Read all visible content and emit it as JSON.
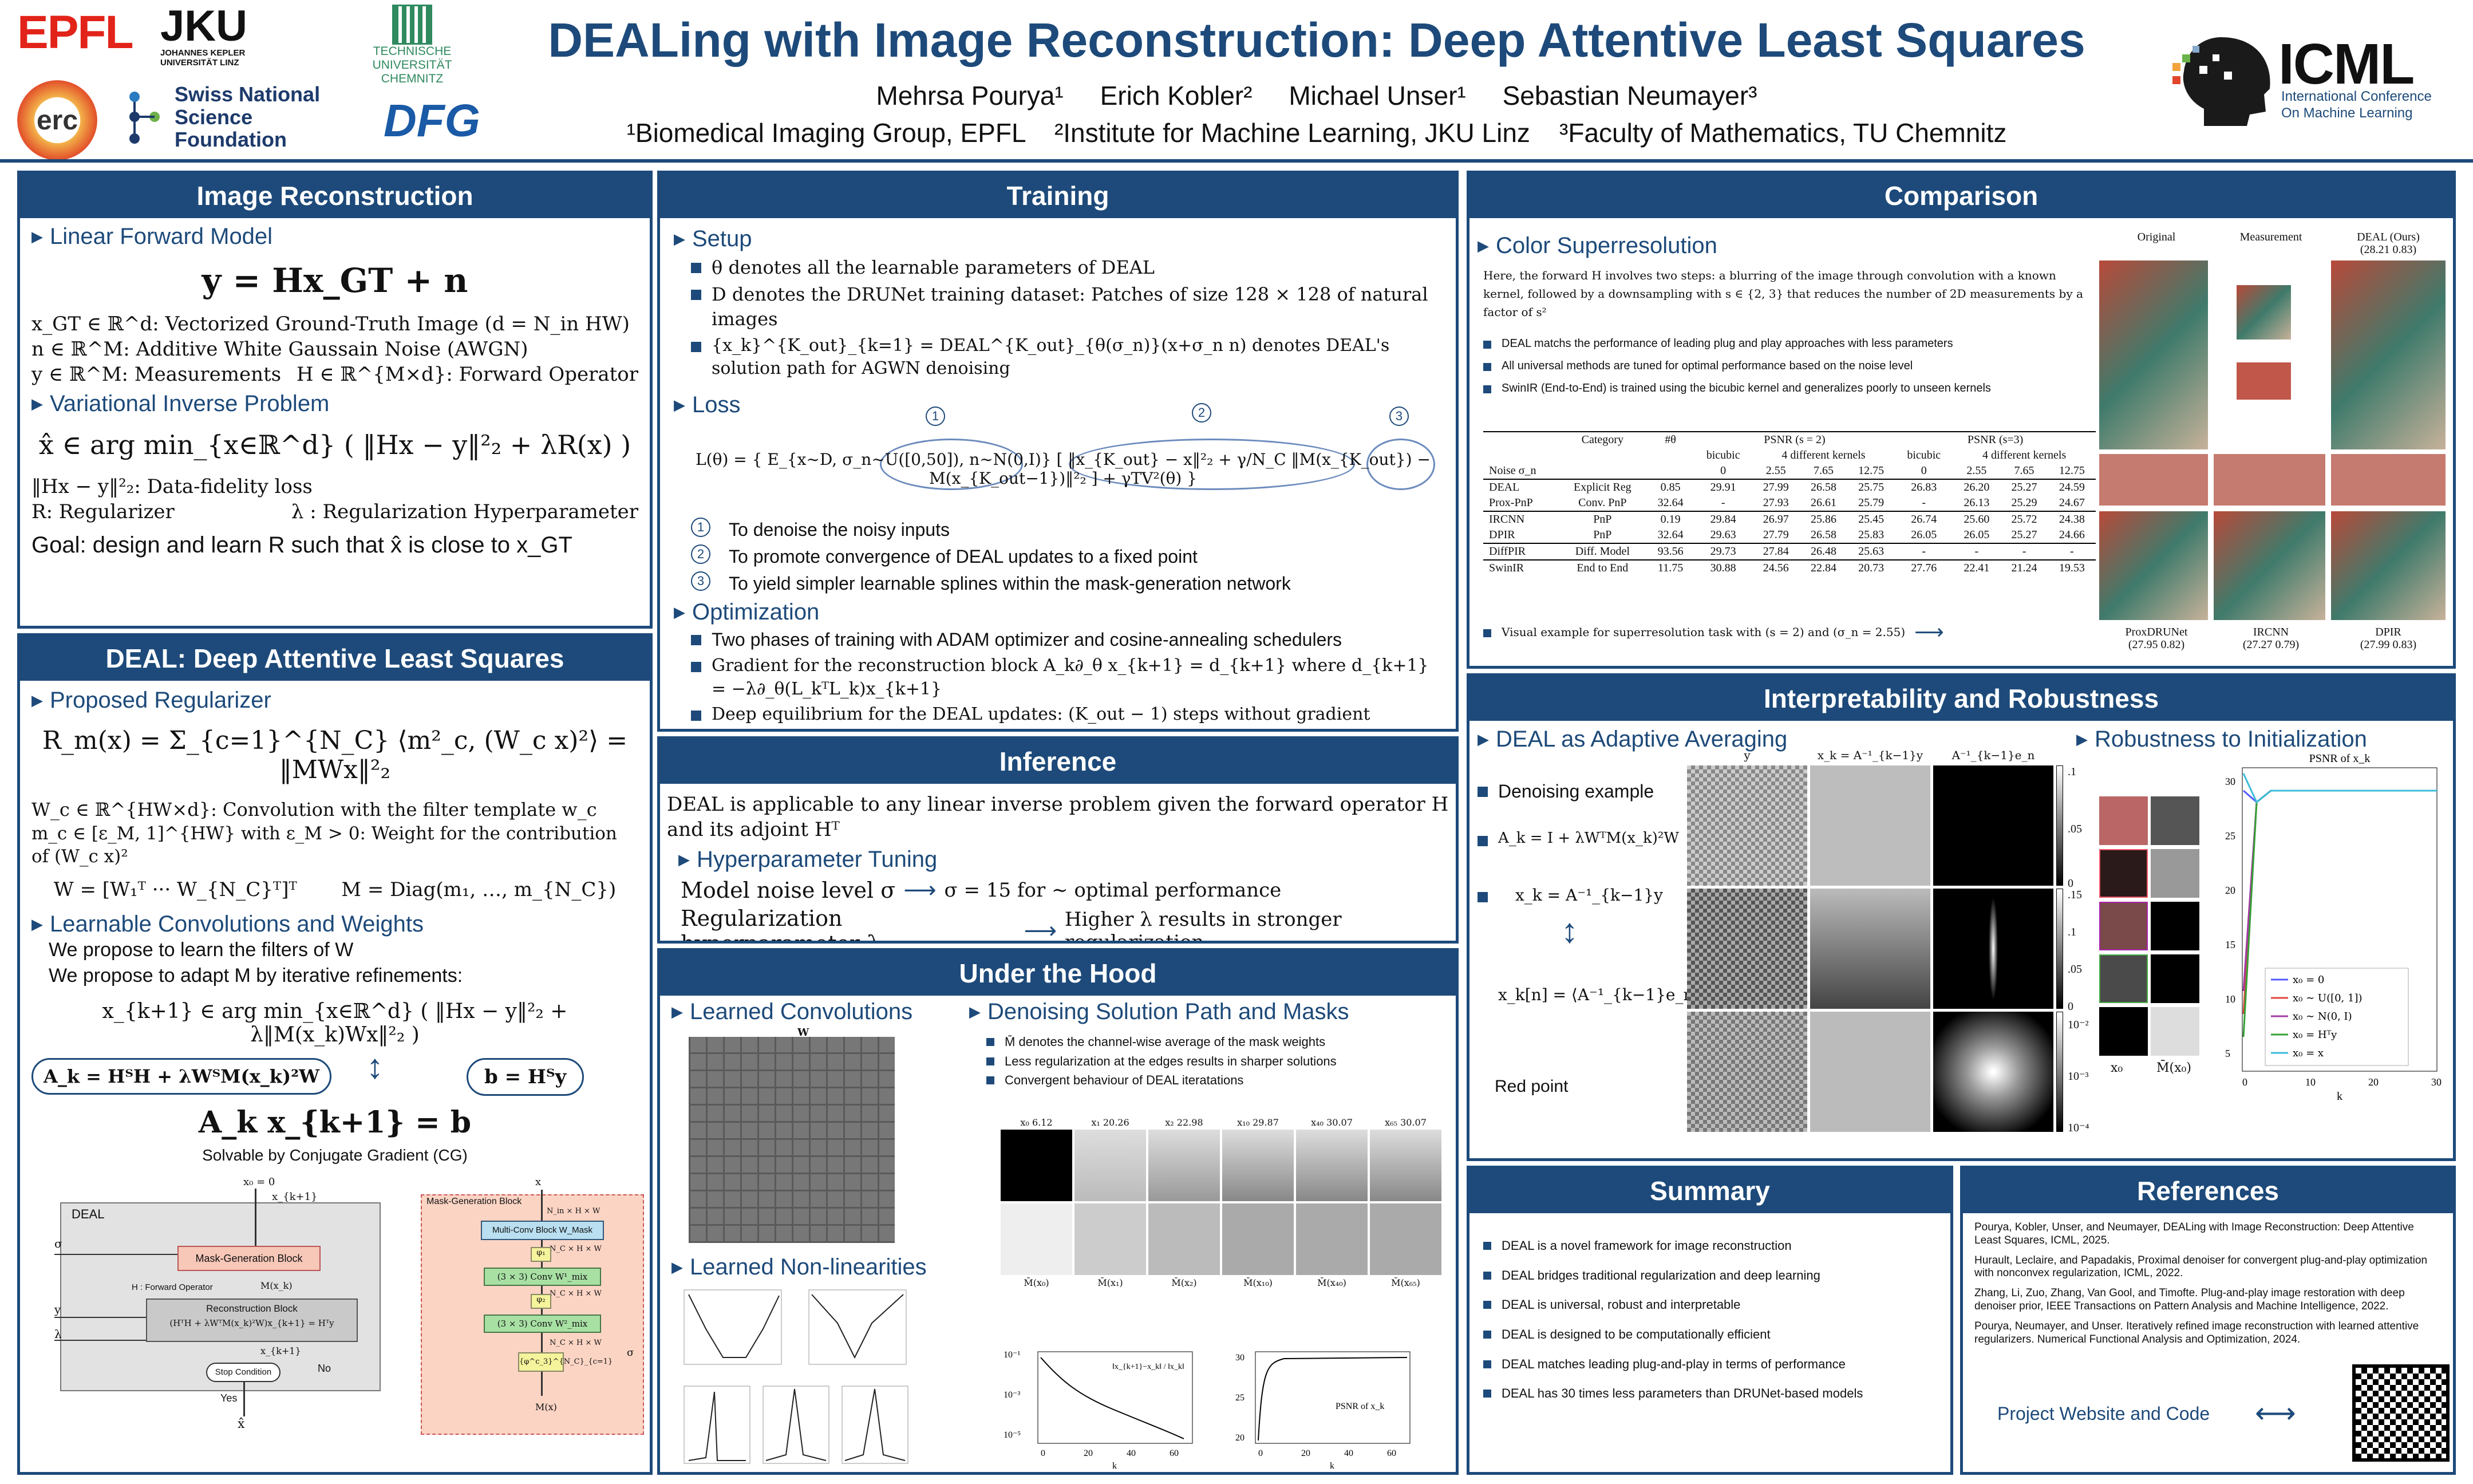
{
  "header": {
    "title": "DEALing with Image Reconstruction: Deep Attentive Least Squares",
    "authors": "Mehrsa Pourya¹     Erich Kobler²     Michael Unser¹     Sebastian Neumayer³",
    "affiliations": "¹Biomedical Imaging Group, EPFL    ²Institute for Machine Learning, JKU Linz    ³Faculty of Mathematics, TU Chemnitz",
    "logos": {
      "epfl": "EPFL",
      "jku": "JKU",
      "jku_sub": "JOHANNES KEPLER UNIVERSITÄT LINZ",
      "tuc": "TECHNISCHE UNIVERSITÄT CHEMNITZ",
      "erc": "erc",
      "snsf": "Swiss National Science Foundation",
      "dfg": "DFG",
      "icml": "ICML",
      "icml_sub": "International Conference On Machine Learning"
    },
    "colors": {
      "brand": "#1d4a7a",
      "epfl": "#e2231a",
      "dfg": "#1a5aa6",
      "tuc": "#2f8a5f",
      "snsf": "#1d3a6b"
    }
  },
  "image_reconstruction": {
    "title": "Image Reconstruction",
    "linear_model_heading": "Linear Forward Model",
    "forward_eq": "y = Hx_GT + n",
    "defs": [
      "x_GT ∈ ℝ^d: Vectorized Ground-Truth Image (d = N_in HW)",
      "n ∈ ℝ^M: Additive White Gaussain Noise (AWGN)",
      "y ∈ ℝ^M: Measurements"
    ],
    "h_def": "H ∈ ℝ^{M×d}: Forward Operator",
    "variational_heading": "Variational Inverse Problem",
    "var_eq": "x̂ ∈ arg min_{x∈ℝ^d} ( ‖Hx − y‖²₂ + λR(x) )",
    "fidelity": "‖Hx − y‖²₂: Data-fidelity loss",
    "regularizer": "R: Regularizer",
    "lambda": "λ : Regularization Hyperparameter",
    "goal": "Goal: design and learn R such that x̂ is close to x_GT"
  },
  "deal": {
    "title": "DEAL: Deep Attentive Least Squares",
    "proposed_heading": "Proposed Regularizer",
    "reg_eq": "R_m(x) = Σ_{c=1}^{N_C} ⟨m²_c, (W_c x)²⟩ = ‖MWx‖²₂",
    "wc_def": "W_c ∈ ℝ^{HW×d}: Convolution with the filter template w_c",
    "mc_def": "m_c ∈ [ε_M, 1]^{HW} with ε_M > 0: Weight for the contribution of (W_c x)²",
    "w_eq": "W = [W₁ᵀ ··· W_{N_C}ᵀ]ᵀ",
    "m_eq": "M = Diag(m₁, …, m_{N_C})",
    "learnable_heading": "Learnable Convolutions and Weights",
    "learn_filters": "We propose to learn the filters of W",
    "adapt_m": "We propose to adapt M by iterative refinements:",
    "iter_eq": "x_{k+1} ∈ arg min_{x∈ℝ^d} ( ‖Hx − y‖²₂ + λ‖M(x_k)Wx‖²₂ )",
    "ak_eq": "A_k = HᵀH + λWᵀM(x_k)²W",
    "b_eq": "b = Hᵀy",
    "axb_eq": "A_k x_{k+1} = b",
    "cg": "Solvable by Conjugate Gradient (CG)",
    "diagram": {
      "deal_label": "DEAL",
      "x0": "x₀ = 0",
      "xk1": "x_{k+1}",
      "sigma": "σ",
      "y": "y",
      "lambda": "λ",
      "mask_block": "Mask-Generation Block",
      "h_op": "H : Forward Operator",
      "mxk": "M(x_k)",
      "recon_block": "Reconstruction Block",
      "recon_eq": "(HᵀH + λWᵀM(x_k)²W)x_{k+1} = Hᵀy",
      "xk1b": "x_{k+1}",
      "stop": "Stop Condition",
      "yes": "Yes",
      "no": "No",
      "xhat": "x̂",
      "mg_title": "Mask-Generation Block",
      "mg_x": "x",
      "mg_dim1": "N_in × H × W",
      "mg_multi": "Multi-Conv Block W_Mask",
      "mg_dim2": "N_C × H × W",
      "mg_phi1": "φ₁",
      "mg_conv1": "(3 × 3) Conv W¹_mix",
      "mg_phi2": "φ₂",
      "mg_conv2": "(3 × 3) Conv W²_mix",
      "mg_phic": "{φ^c_3}^{N_C}_{c=1}",
      "mg_sigma": "σ",
      "mg_mx": "M(x)"
    }
  },
  "training": {
    "title": "Training",
    "setup_heading": "Setup",
    "setup": [
      "θ denotes all the learnable parameters of DEAL",
      "D denotes the DRUNet training dataset: Patches of size 128 × 128 of natural images",
      "{x_k}^{K_out}_{k=1} = DEAL^{K_out}_{θ(σ_n)}(x+σ_n n) denotes DEAL's solution path for AGWN denoising"
    ],
    "loss_heading": "Loss",
    "loss_eq": "L(θ) = { E_{x∼D, σ_n∼U([0,50]), n∼N(0,I)} [ ‖x_{K_out} − x‖²₂ + γ/N_C ‖M(x_{K_out}) − M(x_{K_out−1})‖²₂ ] + γTV²(θ) }",
    "loss_nums": [
      "1",
      "2",
      "3"
    ],
    "reasons": [
      "To denoise the noisy inputs",
      "To promote convergence of DEAL updates to a fixed point",
      "To yield simpler learnable splines within the mask-generation network"
    ],
    "opt_heading": "Optimization",
    "opt": [
      "Two phases of training with ADAM optimizer and cosine-annealing schedulers",
      "Gradient for the reconstruction block A_k∂_θ x_{k+1} = d_{k+1} where d_{k+1} = −λ∂_θ(L_kᵀL_k)x_{k+1}",
      "Deep equilibrium for the DEAL updates: (K_out − 1) steps without gradient tracking followed by one update with auto-differentiation"
    ]
  },
  "inference": {
    "title": "Inference",
    "intro": "DEAL is applicable to any linear inverse problem given the forward operator H and its adjoint Hᵀ",
    "tuning_heading": "Hyperparameter Tuning",
    "noise_label": "Model noise level σ",
    "noise_val": "σ = 15 for ∼ optimal performance",
    "reg_label": "Regularization hyperparameter λ",
    "reg_val": "Higher λ results in stronger regularization"
  },
  "under_hood": {
    "title": "Under the Hood",
    "convs_heading": "Learned Convolutions",
    "w_label": "W",
    "nonlin_heading": "Learned Non-linearities",
    "path_heading": "Denoising Solution Path and Masks",
    "path_items": [
      "M̄ denotes the channel-wise average of the mask weights",
      "Less regularization at the edges results in sharper solutions",
      "Convergent behaviour of DEAL iteratations"
    ],
    "path_labels": [
      "x₀ 6.12",
      "x₁ 20.26",
      "x₂ 22.98",
      "x₁₀ 29.87",
      "x₄₀ 30.07",
      "x₆₅ 30.07"
    ],
    "mask_labels": [
      "M̄(x₀)",
      "M̄(x₁)",
      "M̄(x₂)",
      "M̄(x₁₀)",
      "M̄(x₄₀)",
      "M̄(x₆₅)"
    ],
    "plot1_label": "‖x_{k+1}−x_k‖ / ‖x_k‖",
    "plot1_yticks": [
      "10⁻¹",
      "10⁻³",
      "10⁻⁵"
    ],
    "plot1_xticks": [
      "0",
      "20",
      "40",
      "60"
    ],
    "plot2_label": "PSNR of x_k",
    "plot2_yticks": [
      "30",
      "25",
      "20"
    ],
    "plot2_xticks": [
      "0",
      "20",
      "40",
      "60"
    ],
    "k": "k"
  },
  "comparison": {
    "title": "Comparison",
    "heading": "Color Superresolution",
    "intro": "Here, the forward H involves two steps: a blurring of the image through convolution with a known kernel, followed by a downsampling with s ∈ {2, 3} that reduces the number of 2D measurements by a factor of s²",
    "items": [
      "DEAL matchs the performance of leading plug and play approaches with less parameters",
      "All universal methods are tuned for optimal performance based on the noise level",
      "SwinIR (End-to-End) is trained using the bicubic kernel and generalizes poorly to unseen kernels"
    ],
    "visual": "Visual example for superresolution task with (s = 2) and (σ_n = 2.55)",
    "img_labels": {
      "orig": "Original",
      "meas": "Measurement",
      "deal": "DEAL (Ours)",
      "deal_v": "(28.21 0.83)",
      "prox": "ProxDRUNet",
      "prox_v": "(27.95 0.82)",
      "ircnn": "IRCNN",
      "ircnn_v": "(27.27 0.79)",
      "dpir": "DPIR",
      "dpir_v": "(27.99 0.83)"
    },
    "table": {
      "h1": [
        "Category",
        "#θ",
        "PSNR (s = 2)",
        "PSNR (s=3)"
      ],
      "h2": [
        "bicubic",
        "4 different kernels",
        "bicubic",
        "4 different kernels"
      ],
      "h3": [
        "Noise σ_n",
        "0",
        "2.55",
        "7.65",
        "12.75",
        "0",
        "2.55",
        "7.65",
        "12.75"
      ],
      "rows": [
        [
          "DEAL",
          "Explicit Reg",
          "0.85",
          "29.91",
          "27.99",
          "26.58",
          "25.75",
          "26.83",
          "26.20",
          "25.27",
          "24.59"
        ],
        [
          "Prox-PnP",
          "Conv. PnP",
          "32.64",
          "-",
          "27.93",
          "26.61",
          "25.79",
          "-",
          "26.13",
          "25.29",
          "24.67"
        ],
        [
          "IRCNN",
          "PnP",
          "0.19",
          "29.84",
          "26.97",
          "25.86",
          "25.45",
          "26.74",
          "25.60",
          "25.72",
          "24.38"
        ],
        [
          "DPIR",
          "PnP",
          "32.64",
          "29.63",
          "27.79",
          "26.58",
          "25.83",
          "26.05",
          "26.05",
          "25.27",
          "24.66"
        ],
        [
          "DiffPIR",
          "Diff. Model",
          "93.56",
          "29.73",
          "27.84",
          "26.48",
          "25.63",
          "-",
          "-",
          "-",
          "-"
        ],
        [
          "SwinIR",
          "End to End",
          "11.75",
          "30.88",
          "24.56",
          "22.84",
          "20.73",
          "27.76",
          "22.41",
          "21.24",
          "19.53"
        ]
      ]
    }
  },
  "interpret": {
    "title": "Interpretability and Robustness",
    "avg_heading": "DEAL as Adaptive Averaging",
    "denoise": "Denoising example",
    "ak": "A_k = I + λWᵀM(x_k)²W",
    "xk": "x_k = A⁻¹_{k−1}y",
    "xkn": "x_k[n] = ⟨A⁻¹_{k−1}e_n, y⟩",
    "red": "Red point",
    "col_labels": [
      "y",
      "x_k = A⁻¹_{k−1}y",
      "A⁻¹_{k−1}e_n"
    ],
    "cb1": [
      ".1",
      ".05",
      "0"
    ],
    "cb2": [
      ".15",
      ".1",
      ".05",
      "0"
    ],
    "cb3": [
      "10⁻²",
      "10⁻³",
      "10⁻⁴"
    ],
    "robust_heading": "Robustness to Initialization",
    "psnr_title": "PSNR of x_k",
    "yticks": [
      "30",
      "25",
      "20",
      "15",
      "10",
      "5"
    ],
    "xticks": [
      "0",
      "10",
      "20",
      "30"
    ],
    "xlabel": "k",
    "legend": [
      "x₀ = 0",
      "x₀ ∼ U([0, 1])",
      "x₀ ∼ N(0, I)",
      "x₀ = Hᵀy",
      "x₀ = x"
    ],
    "col_x0": "x₀",
    "col_m": "M̄(x₀)"
  },
  "summary": {
    "title": "Summary",
    "items": [
      "DEAL is a novel framework for image reconstruction",
      "DEAL bridges traditional regularization and deep learning",
      "DEAL is universal, robust and interpretable",
      "DEAL is designed to be computationally efficient",
      "DEAL matches leading plug-and-play in terms of performance",
      "DEAL has 30 times less parameters than DRUNet-based models"
    ]
  },
  "references": {
    "title": "References",
    "items": [
      "Pourya, Kobler, Unser, and Neumayer, DEALing with Image Reconstruction: Deep Attentive Least Squares, ICML, 2025.",
      "Hurault, Leclaire, and Papadakis, Proximal denoiser for convergent plug-and-play optimization with nonconvex regularization, ICML, 2022.",
      "Zhang, Li, Zuo, Zhang, Van Gool, and Timofte. Plug-and-play image restoration with deep denoiser prior, IEEE Transactions on Pattern Analysis and Machine Intelligence, 2022.",
      "Pourya, Neumayer, and Unser. Iteratively refined image reconstruction with learned attentive regularizers. Numerical Functional Analysis and Optimization, 2024."
    ],
    "project": "Project Website and Code"
  }
}
